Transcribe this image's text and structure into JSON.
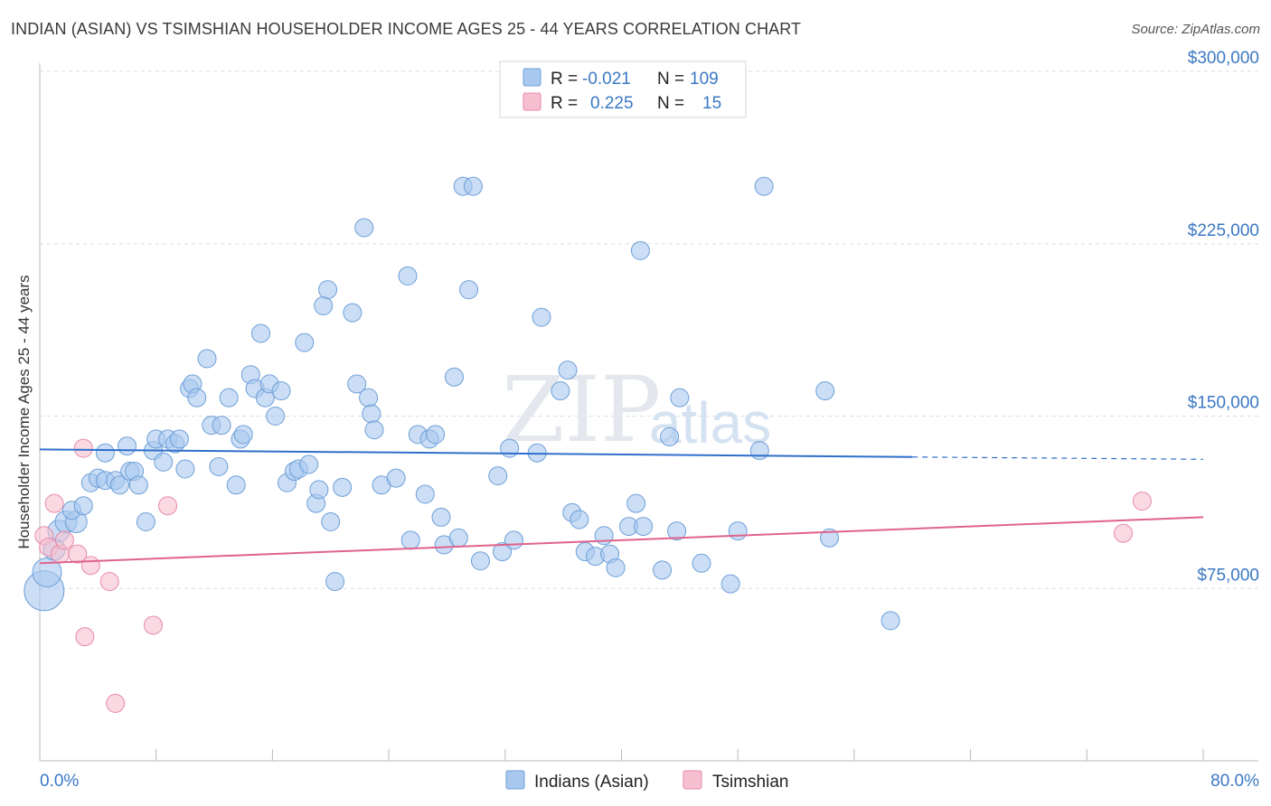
{
  "title": "INDIAN (ASIAN) VS TSIMSHIAN HOUSEHOLDER INCOME AGES 25 - 44 YEARS CORRELATION CHART",
  "source": "Source: ZipAtlas.com",
  "watermark": {
    "zip": "ZIP",
    "atlas": "atlas"
  },
  "legend_top": {
    "rows": [
      {
        "r_label": "R =",
        "r_value": "-0.021",
        "n_label": "N =",
        "n_value": "109"
      },
      {
        "r_label": "R =",
        "r_value": "0.225",
        "n_label": "N =",
        "n_value": "15"
      }
    ]
  },
  "legend_bottom": {
    "series1": "Indians (Asian)",
    "series2": "Tsimshian"
  },
  "colors": {
    "blue_fill": "#a9c8ee",
    "blue_stroke": "#6d9fd8",
    "blue_line": "#2f6fca",
    "pink_fill": "#f6c0d0",
    "pink_stroke": "#e88aa8",
    "pink_line": "#e0638d",
    "tick_label": "#3b78c4",
    "grid": "#d8dde4"
  },
  "chart_data": {
    "type": "scatter",
    "title": "INDIAN (ASIAN) VS TSIMSHIAN HOUSEHOLDER INCOME AGES 25 - 44 YEARS CORRELATION CHART",
    "xlabel": "",
    "ylabel": "Householder Income Ages 25 - 44 years",
    "xlim": [
      0,
      80
    ],
    "ylim": [
      0,
      300000
    ],
    "x_tick_labels": [
      "0.0%",
      "80.0%"
    ],
    "y_tick_values": [
      75000,
      150000,
      225000,
      300000
    ],
    "y_tick_labels": [
      "$75,000",
      "$150,000",
      "$225,000",
      "$300,000"
    ],
    "grid": true,
    "legend_placement": "top-center",
    "series": [
      {
        "name": "Indians (Asian)",
        "R": -0.021,
        "N": 109,
        "trend": {
          "x": [
            0,
            60,
            80
          ],
          "y": [
            135500,
            132200,
            131200
          ],
          "solid_until_x": 60
        },
        "points": [
          [
            0.3,
            74000,
            22
          ],
          [
            0.5,
            82000,
            16
          ],
          [
            1.0,
            92000,
            12
          ],
          [
            1.3,
            100000,
            12
          ],
          [
            1.8,
            104000,
            12
          ],
          [
            2.5,
            104000,
            12
          ],
          [
            2.2,
            109000,
            10
          ],
          [
            3.0,
            111000,
            10
          ],
          [
            3.5,
            121000,
            10
          ],
          [
            4.0,
            123000,
            10
          ],
          [
            4.5,
            122000,
            10
          ],
          [
            5.2,
            122000,
            10
          ],
          [
            4.5,
            134000,
            10
          ],
          [
            5.5,
            120000,
            10
          ],
          [
            6.2,
            126000,
            10
          ],
          [
            6.0,
            137000,
            10
          ],
          [
            6.5,
            126000,
            10
          ],
          [
            6.8,
            120000,
            10
          ],
          [
            7.3,
            104000,
            10
          ],
          [
            7.8,
            135000,
            10
          ],
          [
            8.0,
            140000,
            10
          ],
          [
            8.5,
            130000,
            10
          ],
          [
            8.8,
            140000,
            10
          ],
          [
            9.3,
            138000,
            10
          ],
          [
            9.6,
            140000,
            10
          ],
          [
            10.0,
            127000,
            10
          ],
          [
            10.3,
            162000,
            10
          ],
          [
            10.5,
            164000,
            10
          ],
          [
            10.8,
            158000,
            10
          ],
          [
            11.5,
            175000,
            10
          ],
          [
            11.8,
            146000,
            10
          ],
          [
            12.3,
            128000,
            10
          ],
          [
            12.5,
            146000,
            10
          ],
          [
            13.0,
            158000,
            10
          ],
          [
            13.5,
            120000,
            10
          ],
          [
            13.8,
            140000,
            10
          ],
          [
            14.0,
            142000,
            10
          ],
          [
            14.5,
            168000,
            10
          ],
          [
            14.8,
            162000,
            10
          ],
          [
            15.2,
            186000,
            10
          ],
          [
            15.5,
            158000,
            10
          ],
          [
            15.8,
            164000,
            10
          ],
          [
            16.2,
            150000,
            10
          ],
          [
            16.6,
            161000,
            10
          ],
          [
            17.0,
            121000,
            10
          ],
          [
            17.5,
            126000,
            10
          ],
          [
            17.8,
            127000,
            10
          ],
          [
            18.2,
            182000,
            10
          ],
          [
            18.5,
            129000,
            10
          ],
          [
            19.0,
            112000,
            10
          ],
          [
            19.2,
            118000,
            10
          ],
          [
            19.5,
            198000,
            10
          ],
          [
            19.8,
            205000,
            10
          ],
          [
            20.0,
            104000,
            10
          ],
          [
            20.3,
            78000,
            10
          ],
          [
            20.8,
            119000,
            10
          ],
          [
            21.5,
            195000,
            10
          ],
          [
            21.8,
            164000,
            10
          ],
          [
            22.3,
            232000,
            10
          ],
          [
            22.6,
            158000,
            10
          ],
          [
            22.8,
            151000,
            10
          ],
          [
            23.0,
            144000,
            10
          ],
          [
            23.5,
            120000,
            10
          ],
          [
            24.5,
            123000,
            10
          ],
          [
            25.3,
            211000,
            10
          ],
          [
            25.5,
            96000,
            10
          ],
          [
            26.0,
            142000,
            10
          ],
          [
            26.5,
            116000,
            10
          ],
          [
            26.8,
            140000,
            10
          ],
          [
            27.2,
            142000,
            10
          ],
          [
            27.6,
            106000,
            10
          ],
          [
            27.8,
            94000,
            10
          ],
          [
            28.5,
            167000,
            10
          ],
          [
            28.8,
            97000,
            10
          ],
          [
            29.1,
            250000,
            10
          ],
          [
            29.5,
            205000,
            10
          ],
          [
            29.8,
            250000,
            10
          ],
          [
            30.3,
            87000,
            10
          ],
          [
            31.5,
            124000,
            10
          ],
          [
            31.8,
            91000,
            10
          ],
          [
            32.3,
            136000,
            10
          ],
          [
            32.6,
            96000,
            10
          ],
          [
            34.2,
            134000,
            10
          ],
          [
            34.5,
            193000,
            10
          ],
          [
            35.8,
            161000,
            10
          ],
          [
            36.3,
            170000,
            10
          ],
          [
            36.6,
            108000,
            10
          ],
          [
            37.1,
            105000,
            10
          ],
          [
            37.5,
            91000,
            10
          ],
          [
            38.2,
            89000,
            10
          ],
          [
            38.8,
            98000,
            10
          ],
          [
            39.2,
            90000,
            10
          ],
          [
            39.6,
            84000,
            10
          ],
          [
            40.5,
            102000,
            10
          ],
          [
            41.0,
            112000,
            10
          ],
          [
            41.5,
            102000,
            10
          ],
          [
            41.3,
            222000,
            10
          ],
          [
            42.8,
            83000,
            10
          ],
          [
            43.3,
            141000,
            10
          ],
          [
            43.8,
            100000,
            10
          ],
          [
            44.0,
            158000,
            10
          ],
          [
            45.5,
            86000,
            10
          ],
          [
            47.5,
            77000,
            10
          ],
          [
            48.0,
            100000,
            10
          ],
          [
            49.5,
            135000,
            10
          ],
          [
            49.8,
            250000,
            10
          ],
          [
            54.0,
            161000,
            10
          ],
          [
            54.3,
            97000,
            10
          ],
          [
            58.5,
            61000,
            10
          ]
        ]
      },
      {
        "name": "Tsimshian",
        "R": 0.225,
        "N": 15,
        "trend": {
          "x": [
            0,
            80
          ],
          "y": [
            86000,
            106000
          ]
        },
        "points": [
          [
            0.3,
            98000,
            10
          ],
          [
            0.6,
            93000,
            10
          ],
          [
            1.0,
            112000,
            10
          ],
          [
            1.4,
            90000,
            10
          ],
          [
            1.7,
            96000,
            10
          ],
          [
            2.6,
            90000,
            10
          ],
          [
            3.0,
            136000,
            10
          ],
          [
            3.1,
            54000,
            10
          ],
          [
            3.5,
            85000,
            10
          ],
          [
            4.8,
            78000,
            10
          ],
          [
            5.2,
            25000,
            10
          ],
          [
            7.8,
            59000,
            10
          ],
          [
            8.8,
            111000,
            10
          ],
          [
            74.5,
            99000,
            10
          ],
          [
            75.8,
            113000,
            10
          ]
        ]
      }
    ]
  }
}
